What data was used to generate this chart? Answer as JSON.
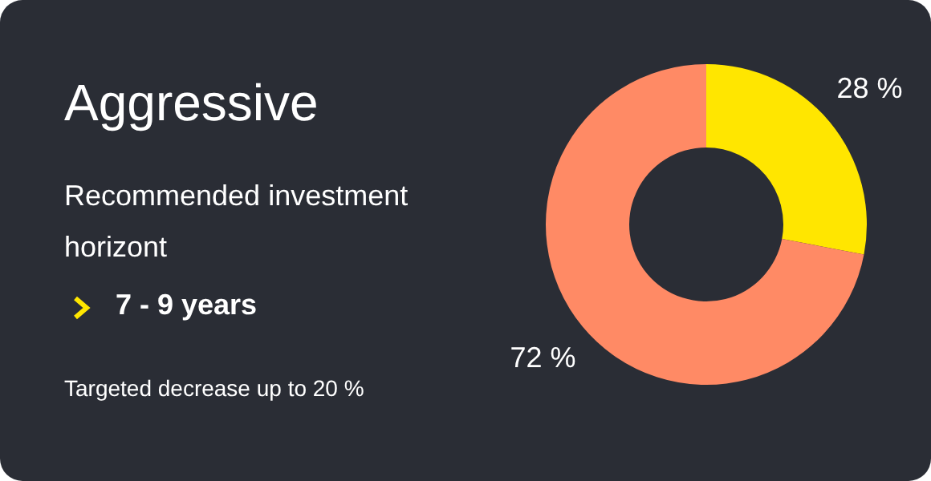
{
  "chart_data": {
    "type": "donut",
    "title": "Aggressive",
    "subtitle": "Recommended investment horizont",
    "annotations": [
      "7 - 9 years",
      "Targeted decrease up to 20 %"
    ],
    "categories": [
      null,
      null
    ],
    "values": [
      28,
      72
    ],
    "colors": [
      "#ffe600",
      "#ff8a65"
    ],
    "value_labels": [
      "28 %",
      "72 %"
    ],
    "legend": false
  }
}
